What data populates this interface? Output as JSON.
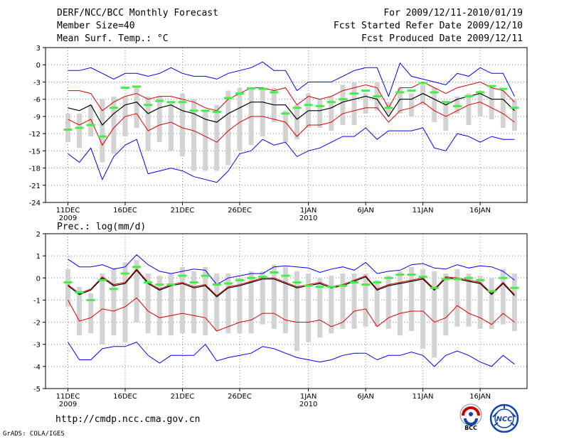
{
  "header": {
    "title": "DERF/NCC/BCC Monthly Forecast",
    "member_size": "Member Size=40",
    "variable": "Mean Surf. Temp.: °C",
    "period": "For 2009/12/11-2010/01/19",
    "started": "Fcst Started Refer Date 2009/12/10",
    "produced": "Fcst Produced Date 2009/12/11"
  },
  "footer": {
    "url": "http://cmdp.ncc.cma.gov.cn",
    "credit": "GrADS: COLA/IGES"
  },
  "logos": {
    "bcc_label": "BCC",
    "ncc_label": "NCC"
  },
  "colors": {
    "max_min": "#0000ff",
    "percentile": "#dd0000",
    "mean": "#000000",
    "box": "#d3d3d3",
    "observed": "#44ee44",
    "grid": "#888888"
  },
  "chart_data": [
    {
      "type": "line",
      "title": "Mean Surf. Temp.: °C",
      "x_tick_labels": [
        "11DEC",
        "16DEC",
        "21DEC",
        "26DEC",
        "1JAN",
        "6JAN",
        "11JAN",
        "16JAN"
      ],
      "x_tick_days": [
        1,
        6,
        11,
        16,
        22,
        27,
        32,
        37
      ],
      "x_year_labels": [
        {
          "day": 1,
          "text": "2009"
        },
        {
          "day": 22,
          "text": "2010"
        }
      ],
      "ylim": [
        -24,
        3
      ],
      "y_ticks": [
        3,
        0,
        -3,
        -6,
        -9,
        -12,
        -15,
        -18,
        -21,
        -24
      ],
      "days": [
        1,
        2,
        3,
        4,
        5,
        6,
        7,
        8,
        9,
        10,
        11,
        12,
        13,
        14,
        15,
        16,
        17,
        18,
        19,
        20,
        21,
        22,
        23,
        24,
        25,
        26,
        27,
        28,
        29,
        30,
        31,
        32,
        33,
        34,
        35,
        36,
        37,
        38,
        39,
        40
      ],
      "series": [
        {
          "name": "max",
          "values": [
            -1,
            -1,
            -0.5,
            -1.5,
            -2.5,
            -1.5,
            -1.5,
            -2,
            -1.5,
            -0.5,
            -1.5,
            -2,
            -2,
            -2.5,
            -1.5,
            -1,
            -0.5,
            0.5,
            -1,
            -1,
            -4.5,
            -3,
            -3,
            -3,
            -2,
            -1,
            -0.5,
            -0.5,
            -5.5,
            0.3,
            -2,
            -2.5,
            -3,
            -3.5,
            -1.5,
            -2,
            -0.5,
            -1.5,
            -1.5,
            -5.5
          ]
        },
        {
          "name": "p75",
          "values": [
            -4.5,
            -4.5,
            -5,
            -8,
            -6.5,
            -5.5,
            -5,
            -6,
            -5.5,
            -5.5,
            -6,
            -6.5,
            -7.5,
            -8,
            -6,
            -5,
            -4,
            -4,
            -4.5,
            -4,
            -7,
            -5.5,
            -6,
            -5.5,
            -4.5,
            -4,
            -3.5,
            -4,
            -7.5,
            -4,
            -4,
            -3,
            -4,
            -5,
            -4,
            -3.5,
            -3,
            -4,
            -4.5,
            -6.5
          ]
        },
        {
          "name": "mean",
          "values": [
            -7.5,
            -8,
            -7,
            -10.5,
            -8.5,
            -7,
            -6.5,
            -8.5,
            -7.5,
            -7,
            -8,
            -8.5,
            -9.5,
            -10,
            -8.5,
            -7.5,
            -6.5,
            -6.5,
            -7,
            -7,
            -9.5,
            -8,
            -8,
            -7.5,
            -6.5,
            -6,
            -5.5,
            -6,
            -9,
            -6,
            -6,
            -5,
            -6,
            -7,
            -6,
            -5.5,
            -5,
            -6,
            -6,
            -8
          ]
        },
        {
          "name": "p25",
          "values": [
            -9.5,
            -10.5,
            -9.5,
            -14,
            -11,
            -9,
            -8.5,
            -11.5,
            -10.5,
            -10,
            -11,
            -11.5,
            -12.5,
            -13.5,
            -11.5,
            -10,
            -9,
            -9,
            -9.5,
            -10,
            -12.5,
            -10.5,
            -10.5,
            -10,
            -8.5,
            -8,
            -7.5,
            -7.5,
            -10,
            -8,
            -7.5,
            -6.5,
            -8,
            -9,
            -8,
            -7,
            -6.5,
            -7.5,
            -8.5,
            -10
          ]
        },
        {
          "name": "min",
          "values": [
            -15.5,
            -17,
            -14.5,
            -20,
            -16,
            -14,
            -13,
            -19,
            -18.5,
            -18,
            -18.5,
            -19.5,
            -20,
            -20.5,
            -18.5,
            -15.5,
            -15,
            -13,
            -14,
            -13.5,
            -16,
            -15,
            -14.5,
            -13.5,
            -12.5,
            -12.5,
            -11,
            -13,
            -11.5,
            -11.5,
            -11.5,
            -11,
            -14.5,
            -15,
            -12,
            -12.5,
            -13.5,
            -12.5,
            -13,
            -13
          ]
        },
        {
          "name": "observed",
          "values": [
            -11.3,
            -11,
            -10.5,
            -12.5,
            -7.5,
            -4,
            -3.8,
            -7,
            -6.3,
            -6.5,
            -6.5,
            -8,
            -8,
            -8.2,
            -5.8,
            -5,
            -4.1,
            -4.2,
            -4.8,
            -8.5,
            -7.5,
            -7,
            -7.2,
            -6.5,
            -6,
            -5,
            -4.5,
            -5.5,
            -7.5,
            -4.8,
            -4.5,
            -3.2,
            -4.8,
            -6.5,
            -7.2,
            -5.5,
            -4.8,
            -3.7,
            -4.2,
            -7.5
          ]
        },
        {
          "name": "box_top",
          "values": [
            -8.5,
            -8.5,
            -7,
            -6,
            -5.5,
            -5.5,
            -4,
            -5.5,
            -5.5,
            -6.5,
            -5,
            -6,
            -8,
            -7,
            -4.5,
            -4,
            -4,
            -4,
            -4,
            -8,
            -7,
            -5,
            -6,
            -5.5,
            -3.5,
            -3,
            -5,
            -3,
            -6.5,
            -4,
            -5,
            -3.5,
            -4,
            -6.5,
            -5.5,
            -5,
            -4.5,
            -4,
            -4.5,
            -6
          ]
        },
        {
          "name": "box_bottom",
          "values": [
            -13.5,
            -14.5,
            -12.5,
            -17,
            -15.5,
            -12.5,
            -11,
            -15,
            -13.5,
            -15,
            -16,
            -18.5,
            -18.5,
            -18.5,
            -17.5,
            -15,
            -14,
            -12.5,
            -10,
            -13.5,
            -13,
            -11,
            -11,
            -11.5,
            -10.5,
            -10.5,
            -8.5,
            -8,
            -8.5,
            -8.5,
            -9,
            -7,
            -10,
            -11.5,
            -8.5,
            -10.5,
            -9,
            -9.5,
            -11,
            -11.5
          ]
        }
      ]
    },
    {
      "type": "line",
      "title": "Prec.: log(mm/d)",
      "x_tick_labels": [
        "11DEC",
        "16DEC",
        "21DEC",
        "26DEC",
        "1JAN",
        "6JAN",
        "11JAN",
        "16JAN"
      ],
      "x_tick_days": [
        1,
        6,
        11,
        16,
        22,
        27,
        32,
        37
      ],
      "x_year_labels": [
        {
          "day": 1,
          "text": "2009"
        },
        {
          "day": 22,
          "text": "2010"
        }
      ],
      "ylim": [
        -5,
        2
      ],
      "y_ticks": [
        2,
        1,
        0,
        -1,
        -2,
        -3,
        -4,
        -5
      ],
      "days": [
        1,
        2,
        3,
        4,
        5,
        6,
        7,
        8,
        9,
        10,
        11,
        12,
        13,
        14,
        15,
        16,
        17,
        18,
        19,
        20,
        21,
        22,
        23,
        24,
        25,
        26,
        27,
        28,
        29,
        30,
        31,
        32,
        33,
        34,
        35,
        36,
        37,
        38,
        39,
        40
      ],
      "series": [
        {
          "name": "max",
          "values": [
            0.85,
            0.5,
            0.5,
            0.6,
            0.4,
            0.5,
            1.05,
            0.6,
            0.3,
            0.2,
            0.3,
            0.4,
            0.35,
            -0.3,
            0,
            0.1,
            0.2,
            0.2,
            0.5,
            0.55,
            0.5,
            0.45,
            0.25,
            0.4,
            0.5,
            0.35,
            0.7,
            0.2,
            0.3,
            0.35,
            0.6,
            0.65,
            0.45,
            0.4,
            0.6,
            0.45,
            0.55,
            0.5,
            0.3,
            -0.1
          ]
        },
        {
          "name": "p75",
          "values": [
            -0.3,
            -0.7,
            -0.5,
            0.05,
            -0.3,
            -0.2,
            0.4,
            -0.2,
            -0.5,
            -0.3,
            -0.2,
            -0.4,
            -0.3,
            -0.8,
            -0.4,
            -0.3,
            -0.15,
            0,
            0,
            -0.2,
            -0.4,
            -0.3,
            -0.2,
            -0.4,
            -0.3,
            -0.1,
            0.1,
            -0.5,
            -0.3,
            -0.2,
            -0.1,
            0,
            -0.5,
            0.05,
            0,
            -0.1,
            -0.2,
            -0.7,
            -0.2,
            -0.75
          ]
        },
        {
          "name": "mean",
          "values": [
            -0.35,
            -0.75,
            -0.55,
            0,
            -0.35,
            -0.25,
            0.35,
            -0.25,
            -0.55,
            -0.35,
            -0.25,
            -0.45,
            -0.35,
            -0.85,
            -0.45,
            -0.35,
            -0.2,
            -0.05,
            -0.05,
            -0.25,
            -0.45,
            -0.35,
            -0.25,
            -0.45,
            -0.35,
            -0.15,
            0.05,
            -0.55,
            -0.35,
            -0.25,
            -0.15,
            -0.05,
            -0.55,
            0,
            -0.05,
            -0.15,
            -0.25,
            -0.75,
            -0.25,
            -0.8
          ]
        },
        {
          "name": "p25",
          "values": [
            -1,
            -1.95,
            -1.8,
            -1.4,
            -1.5,
            -1.3,
            -0.9,
            -1.5,
            -1.8,
            -1.7,
            -1.6,
            -1.7,
            -1.8,
            -2.4,
            -2.2,
            -2,
            -1.9,
            -1.6,
            -1.6,
            -1.9,
            -2,
            -2,
            -1.9,
            -2.2,
            -2,
            -1.5,
            -1.4,
            -2.2,
            -1.8,
            -1.6,
            -1.5,
            -1.5,
            -2,
            -1.8,
            -1.25,
            -1.6,
            -1.8,
            -2.1,
            -1.6,
            -2
          ]
        },
        {
          "name": "min",
          "values": [
            -2.9,
            -3.7,
            -3.7,
            -3.2,
            -3.1,
            -3.1,
            -2.9,
            -3.5,
            -3.85,
            -3.5,
            -3.5,
            -3.5,
            -3,
            -3.75,
            -3.6,
            -3.5,
            -3.4,
            -3.1,
            -3.2,
            -3.4,
            -3.6,
            -3.7,
            -3.8,
            -3.7,
            -3.5,
            -3.4,
            -3.4,
            -3.7,
            -3.5,
            -3.5,
            -3.35,
            -3.5,
            -4,
            -3.5,
            -3.3,
            -3.5,
            -3.8,
            -4,
            -3.5,
            -3.9
          ]
        },
        {
          "name": "observed",
          "values": [
            -0.2,
            -0.65,
            -1,
            -0.1,
            -0.5,
            0.2,
            0.5,
            -0.2,
            -0.3,
            -0.3,
            0.1,
            -0.2,
            0.1,
            -0.3,
            -0.25,
            -0.1,
            0,
            0.05,
            0.25,
            0.1,
            -0.2,
            -0.35,
            -0.4,
            -0.4,
            -0.35,
            -0.2,
            -0.3,
            -0.2,
            0,
            0.15,
            0.15,
            0.05,
            -0.45,
            -0.05,
            -0.05,
            0,
            -0.1,
            -0.6,
            0,
            -0.45
          ]
        },
        {
          "name": "box_top",
          "values": [
            0.4,
            -0.4,
            -0.7,
            0.2,
            0.4,
            0.7,
            0.8,
            0.2,
            0.1,
            0.2,
            0.5,
            0.3,
            0.5,
            0.2,
            0.2,
            0,
            0.3,
            0.3,
            0.6,
            0.5,
            0.3,
            0.2,
            0,
            0.1,
            0.2,
            0.2,
            0.2,
            -0.1,
            0.1,
            0.3,
            0.5,
            0.4,
            0.3,
            0.2,
            0.4,
            0.2,
            0.1,
            0,
            0.4,
            0.2
          ]
        },
        {
          "name": "box_bottom",
          "values": [
            -1.3,
            -2.6,
            -2.5,
            -3,
            -2.6,
            -2.9,
            -2,
            -2.5,
            -2.6,
            -2.6,
            -2.5,
            -2.5,
            -2.6,
            -2.4,
            -2.5,
            -2.5,
            -2.5,
            -2.1,
            -2.3,
            -2.5,
            -3.3,
            -2.9,
            -2.7,
            -2.5,
            -2.3,
            -2.3,
            -2.2,
            -2.2,
            -2.3,
            -2.6,
            -2.4,
            -3.2,
            -3.6,
            -2.6,
            -2.2,
            -2.2,
            -2.3,
            -2.3,
            -2.1,
            -2.4
          ]
        }
      ]
    }
  ]
}
